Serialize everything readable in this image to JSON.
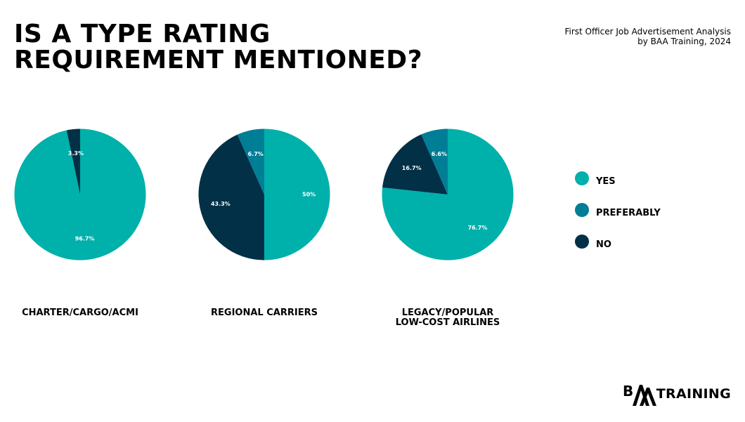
{
  "title": {
    "line1": "IS A TYPE RATING",
    "line2": "REQUIREMENT MENTIONED?"
  },
  "source": {
    "line1": "First Officer Job Advertisement Analysis",
    "line2": "by BAA Training, 2024"
  },
  "colors": {
    "yes": "#00b0aa",
    "preferably": "#007e96",
    "no": "#023047"
  },
  "legend": [
    {
      "label": "YES",
      "color": "#00b0aa"
    },
    {
      "label": "PREFERABLY",
      "color": "#007e96"
    },
    {
      "label": "NO",
      "color": "#023047"
    }
  ],
  "chart_data": [
    {
      "type": "pie",
      "title_lines": [
        "CHARTER/CARGO/ACMI"
      ],
      "slices": [
        {
          "name": "YES",
          "value": 96.7,
          "label": "96.7%",
          "color": "#00b0aa"
        },
        {
          "name": "NO",
          "value": 3.3,
          "label": "3.3%",
          "color": "#023047"
        }
      ]
    },
    {
      "type": "pie",
      "title_lines": [
        "REGIONAL CARRIERS"
      ],
      "slices": [
        {
          "name": "YES",
          "value": 50,
          "label": "50%",
          "color": "#00b0aa"
        },
        {
          "name": "NO",
          "value": 43.3,
          "label": "43.3%",
          "color": "#023047"
        },
        {
          "name": "PREFERABLY",
          "value": 6.7,
          "label": "6.7%",
          "color": "#007e96"
        }
      ]
    },
    {
      "type": "pie",
      "title_lines": [
        "LEGACY/POPULAR",
        "LOW-COST AIRLINES"
      ],
      "slices": [
        {
          "name": "YES",
          "value": 76.7,
          "label": "76.7%",
          "color": "#00b0aa"
        },
        {
          "name": "NO",
          "value": 16.7,
          "label": "16.7%",
          "color": "#023047"
        },
        {
          "name": "PREFERABLY",
          "value": 6.6,
          "label": "6.6%",
          "color": "#007e96"
        }
      ]
    }
  ],
  "logo": {
    "text": "TRAINING",
    "mark_text": "BAA"
  }
}
